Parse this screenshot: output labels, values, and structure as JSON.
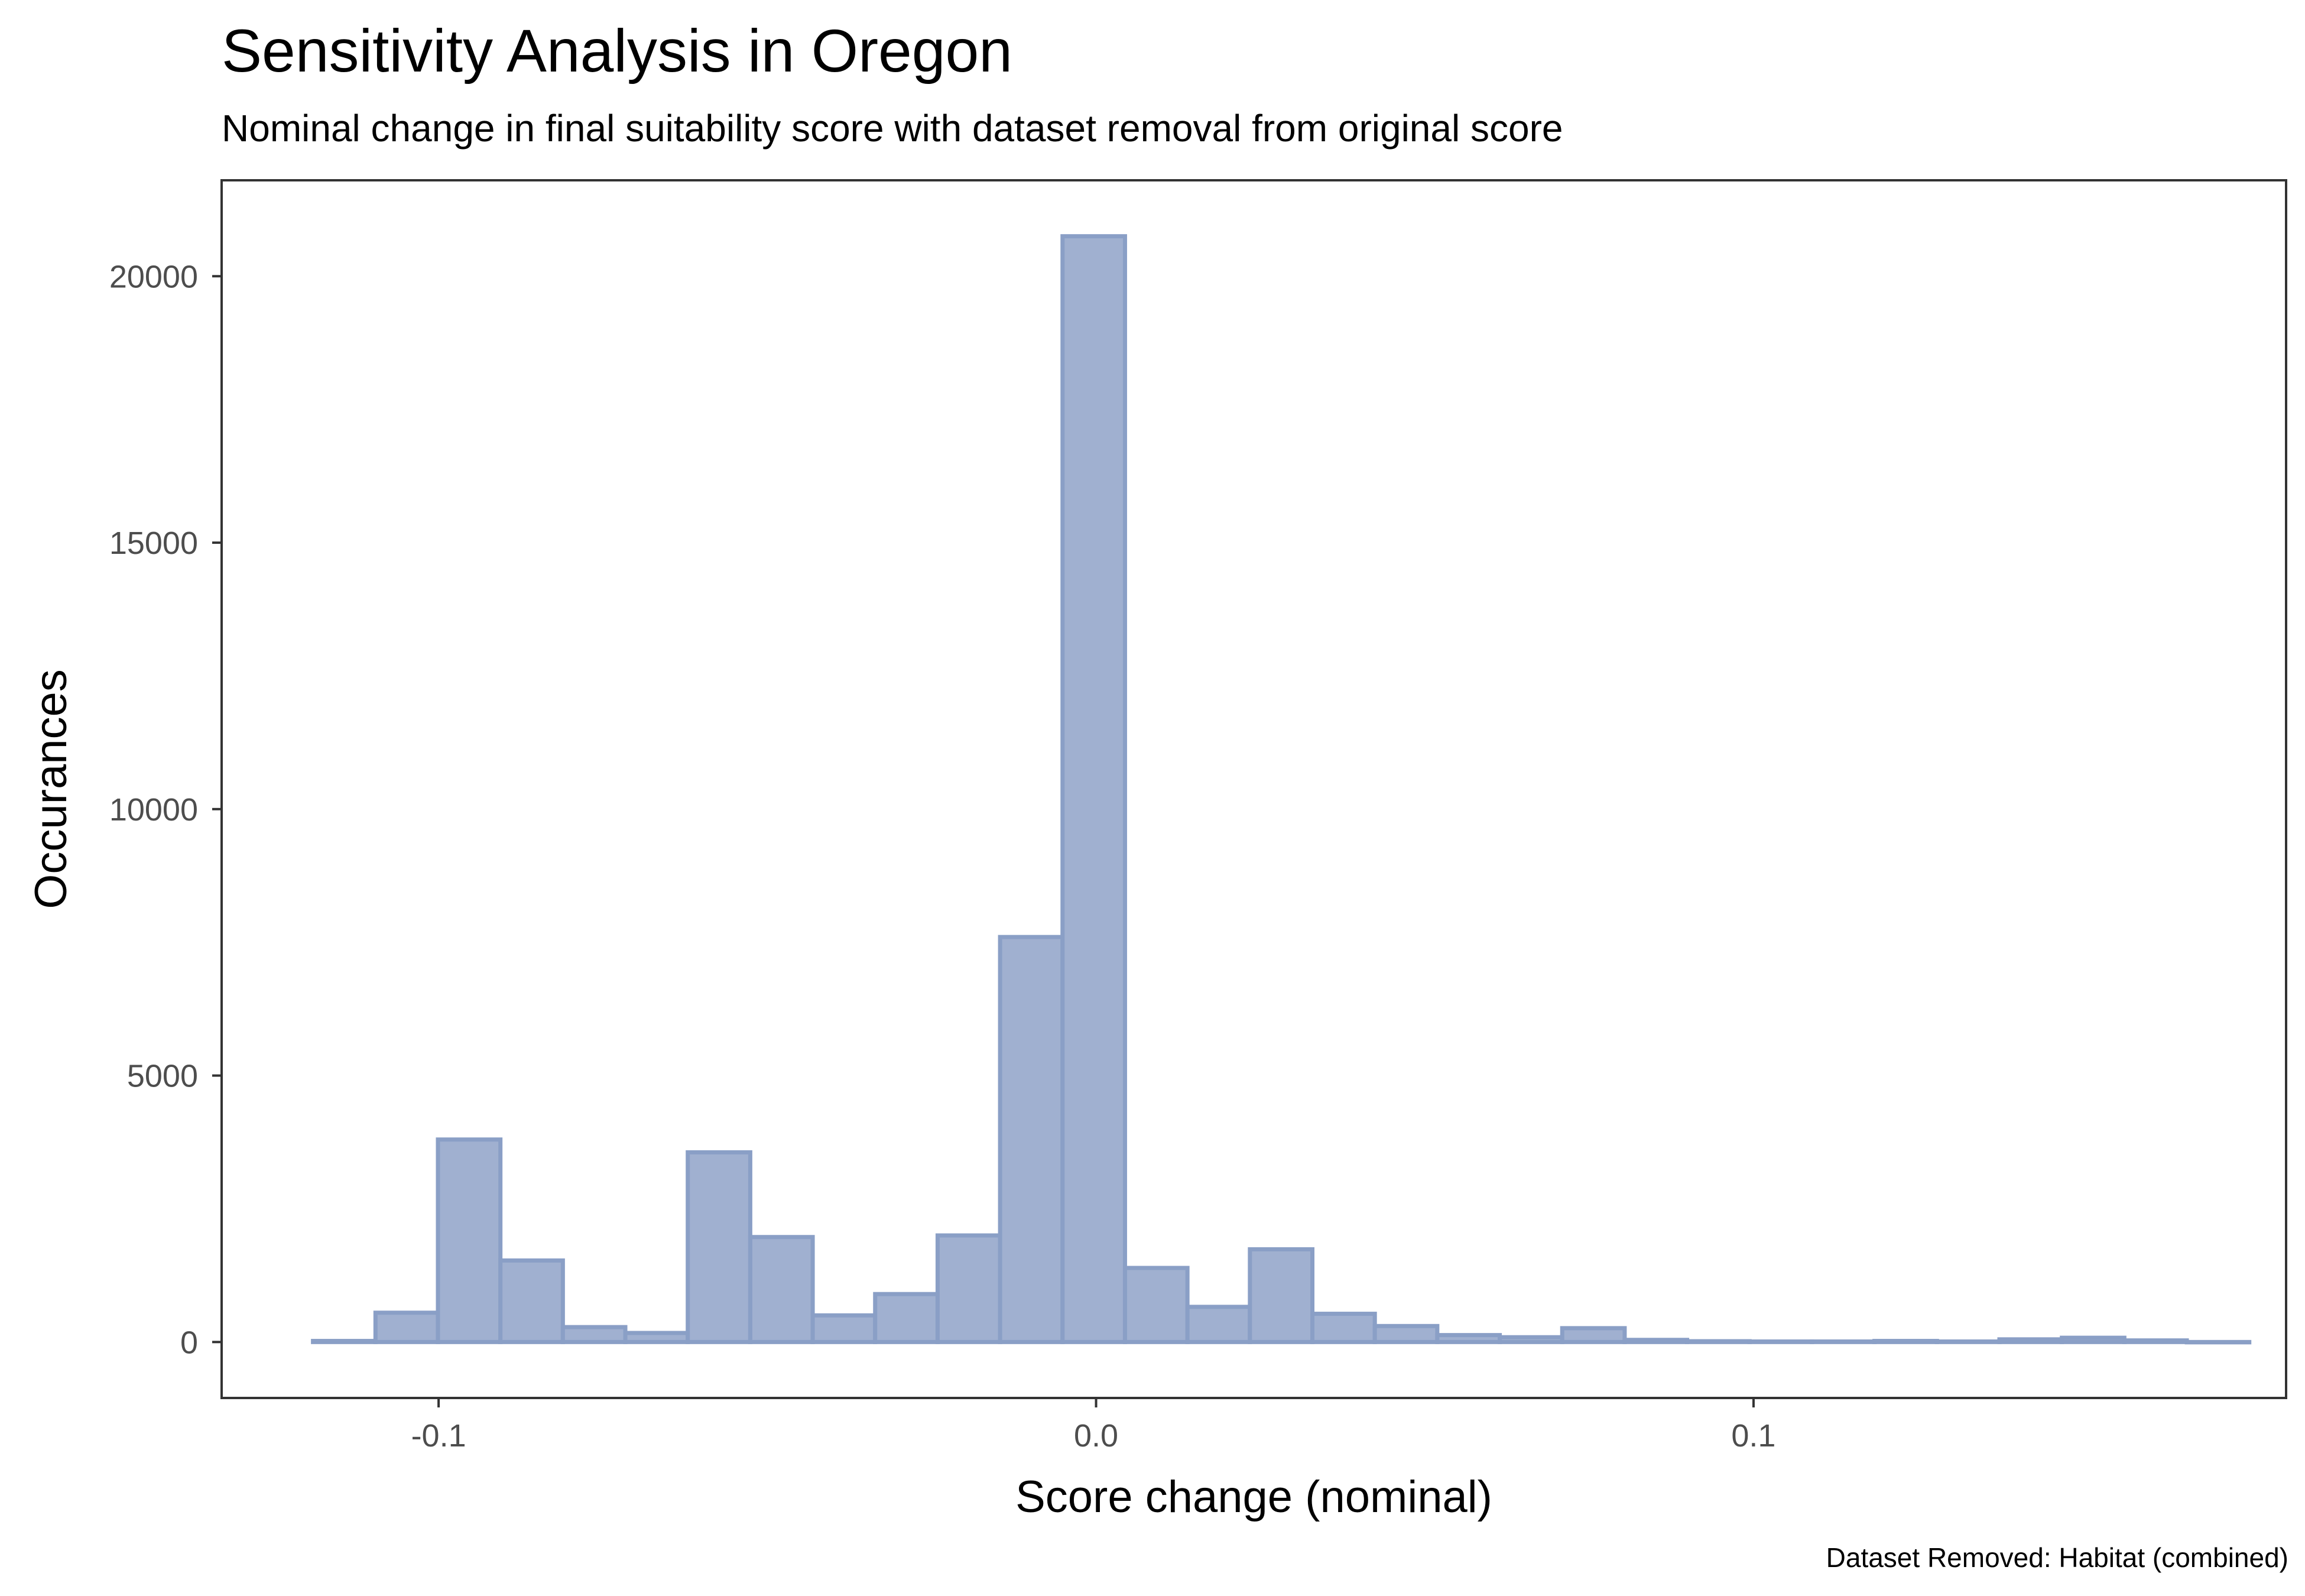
{
  "chart_data": {
    "type": "bar",
    "title": "Sensitivity Analysis in Oregon",
    "subtitle": "Nominal change in final suitability score with dataset removal from original score",
    "caption": "Dataset Removed: Habitat (combined)",
    "xlabel": "Score change (nominal)",
    "ylabel": "Occurances",
    "xlim": [
      -0.133,
      0.181
    ],
    "ylim": [
      -1050,
      21800
    ],
    "x_ticks": [
      {
        "value": -0.1,
        "label": "-0.1"
      },
      {
        "value": 0.0,
        "label": "0.0"
      },
      {
        "value": 0.1,
        "label": "0.1"
      }
    ],
    "y_ticks": [
      {
        "value": 0,
        "label": "0"
      },
      {
        "value": 5000,
        "label": "5000"
      },
      {
        "value": 10000,
        "label": "10000"
      },
      {
        "value": 15000,
        "label": "15000"
      },
      {
        "value": 20000,
        "label": "20000"
      }
    ],
    "bin_width": 0.0095,
    "x": [
      -0.1191,
      -0.1096,
      -0.1001,
      -0.0906,
      -0.0811,
      -0.0716,
      -0.0621,
      -0.0526,
      -0.0431,
      -0.0336,
      -0.0241,
      -0.0146,
      -0.0051,
      0.0044,
      0.0139,
      0.0234,
      0.0329,
      0.0424,
      0.0519,
      0.0614,
      0.0709,
      0.0804,
      0.0899,
      0.0994,
      0.1089,
      0.1184,
      0.1279,
      0.1374,
      0.1469,
      0.1564,
      0.1659
    ],
    "values": [
      20,
      550,
      3800,
      1530,
      280,
      170,
      3560,
      1970,
      500,
      900,
      2000,
      7600,
      20750,
      1390,
      660,
      1740,
      530,
      300,
      130,
      90,
      260,
      40,
      15,
      10,
      10,
      20,
      10,
      50,
      80,
      30,
      0
    ],
    "grid": false,
    "legend": "none",
    "colors": {
      "fill": "#a0b0d0",
      "outline": "#8a9fc6",
      "panel_border": "#333333"
    }
  }
}
